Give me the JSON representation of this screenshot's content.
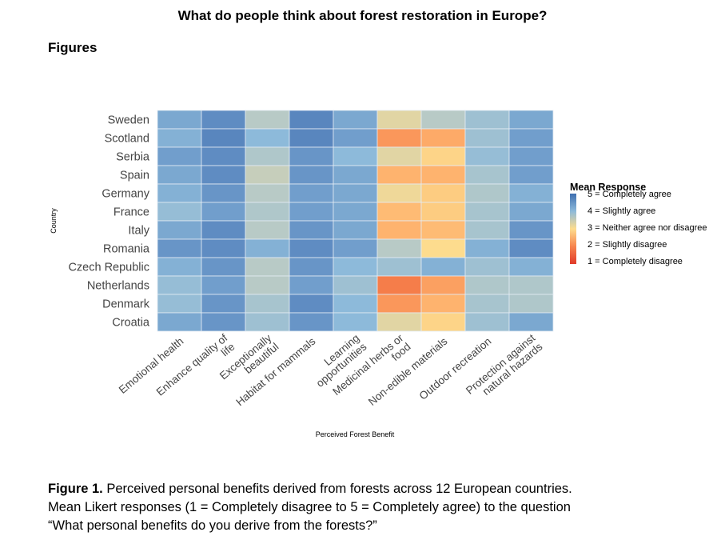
{
  "header": {
    "title": "What do people think about forest restoration in Europe?",
    "section": "Figures"
  },
  "caption": {
    "label": "Figure 1.",
    "text1": " Perceived personal benefits derived from forests across 12 European countries.",
    "text2": "Mean Likert responses (1 = Completely disagree to 5 = Completely agree) to the question",
    "text3": "“What personal benefits do you derive from the forests?”"
  },
  "chart_data": {
    "type": "heatmap",
    "title": "",
    "xlabel": "Perceived Forest Benefit",
    "ylabel": "Country",
    "y_categories": [
      "Sweden",
      "Scotland",
      "Serbia",
      "Spain",
      "Germany",
      "France",
      "Italy",
      "Romania",
      "Czech Republic",
      "Netherlands",
      "Denmark",
      "Croatia"
    ],
    "x_categories": [
      [
        "Emotional health"
      ],
      [
        "Enhance quality of",
        "life"
      ],
      [
        "Exceptionally",
        "beautiful"
      ],
      [
        "Habitat for mammals"
      ],
      [
        "Learning",
        "opportunities"
      ],
      [
        "Medicinal herbs or",
        "food"
      ],
      [
        "Non-edible materials"
      ],
      [
        "Outdoor recreation"
      ],
      [
        "Protection against",
        "natural hazards"
      ]
    ],
    "values": [
      [
        4.2,
        4.5,
        3.5,
        4.6,
        4.2,
        3.2,
        3.5,
        3.8,
        4.2
      ],
      [
        4.1,
        4.6,
        4.0,
        4.6,
        4.3,
        2.2,
        2.4,
        3.8,
        4.3
      ],
      [
        4.3,
        4.5,
        3.6,
        4.4,
        4.0,
        3.2,
        2.9,
        3.9,
        4.3
      ],
      [
        4.2,
        4.5,
        3.4,
        4.4,
        4.2,
        2.5,
        2.5,
        3.7,
        4.3
      ],
      [
        4.1,
        4.4,
        3.5,
        4.3,
        4.2,
        3.1,
        2.8,
        3.6,
        4.1
      ],
      [
        3.9,
        4.3,
        3.6,
        4.3,
        4.2,
        2.6,
        2.8,
        3.7,
        4.2
      ],
      [
        4.2,
        4.5,
        3.5,
        4.4,
        4.2,
        2.5,
        2.6,
        3.7,
        4.4
      ],
      [
        4.4,
        4.5,
        4.1,
        4.5,
        4.3,
        3.5,
        3.0,
        4.1,
        4.5
      ],
      [
        4.1,
        4.4,
        3.5,
        4.4,
        4.0,
        3.8,
        4.1,
        3.8,
        4.1
      ],
      [
        3.9,
        4.3,
        3.5,
        4.3,
        3.8,
        1.9,
        2.3,
        3.6,
        3.6
      ],
      [
        3.9,
        4.4,
        3.7,
        4.5,
        4.0,
        2.2,
        2.5,
        3.7,
        3.6
      ],
      [
        4.2,
        4.4,
        3.8,
        4.4,
        4.0,
        3.2,
        2.9,
        3.8,
        4.2
      ]
    ],
    "value_range": [
      1,
      5
    ],
    "legend": {
      "title": "Mean Response",
      "position": "right",
      "items": [
        "5 = Completely agree",
        "4 = Slightly agree",
        "3 = Neither agree nor disagree",
        "2 = Slightly disagree",
        "1 = Completely disagree"
      ]
    },
    "colors": {
      "1": "#e03a2a",
      "2": "#f7844e",
      "2.5": "#feb36e",
      "3": "#fddc8e",
      "3.5": "#b8cac6",
      "4": "#8dbada",
      "4.5": "#5f8cc2",
      "5": "#3f6fb0"
    }
  }
}
